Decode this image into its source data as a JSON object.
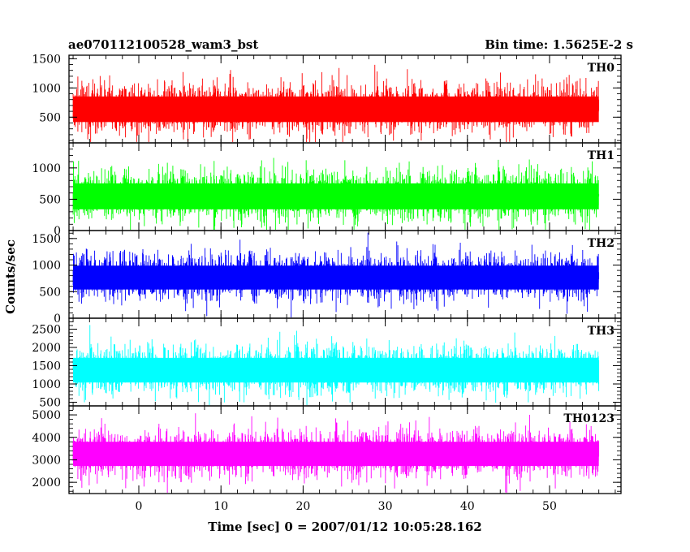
{
  "chart_data": {
    "type": "line",
    "title_left": "ae070112100528_wam3_bst",
    "title_right": "Bin time: 1.5625E-2 s",
    "xlabel": "Time [sec] 0 = 2007/01/12 10:05:28.162",
    "ylabel": "Counts/sec",
    "xlim": [
      -8.5,
      58.7
    ],
    "x_ticks": [
      0,
      10,
      20,
      30,
      40,
      50
    ],
    "data_x_range": [
      -8,
      56
    ],
    "bin_time_s": 0.015625,
    "panels": [
      {
        "name": "TH0",
        "color": "#ff0000",
        "ylim": [
          60,
          1560
        ],
        "y_ticks": [
          500,
          1000,
          1500
        ],
        "approx_mean": 650,
        "approx_min": 100,
        "approx_max": 1560
      },
      {
        "name": "TH1",
        "color": "#00ff00",
        "ylim": [
          0,
          1400
        ],
        "y_ticks": [
          0,
          500,
          1000
        ],
        "approx_mean": 560,
        "approx_min": 20,
        "approx_max": 1400
      },
      {
        "name": "TH2",
        "color": "#0000ff",
        "ylim": [
          0,
          1650
        ],
        "y_ticks": [
          0,
          500,
          1000,
          1500
        ],
        "approx_mean": 780,
        "approx_min": 100,
        "approx_max": 1600
      },
      {
        "name": "TH3",
        "color": "#00ffff",
        "ylim": [
          400,
          2800
        ],
        "y_ticks": [
          500,
          1000,
          1500,
          2000,
          2500
        ],
        "approx_mean": 1400,
        "approx_min": 450,
        "approx_max": 2700
      },
      {
        "name": "TH0123",
        "color": "#ff00ff",
        "ylim": [
          1500,
          5400
        ],
        "y_ticks": [
          2000,
          3000,
          4000,
          5000
        ],
        "approx_mean": 3300,
        "approx_min": 1600,
        "approx_max": 5200
      }
    ]
  }
}
